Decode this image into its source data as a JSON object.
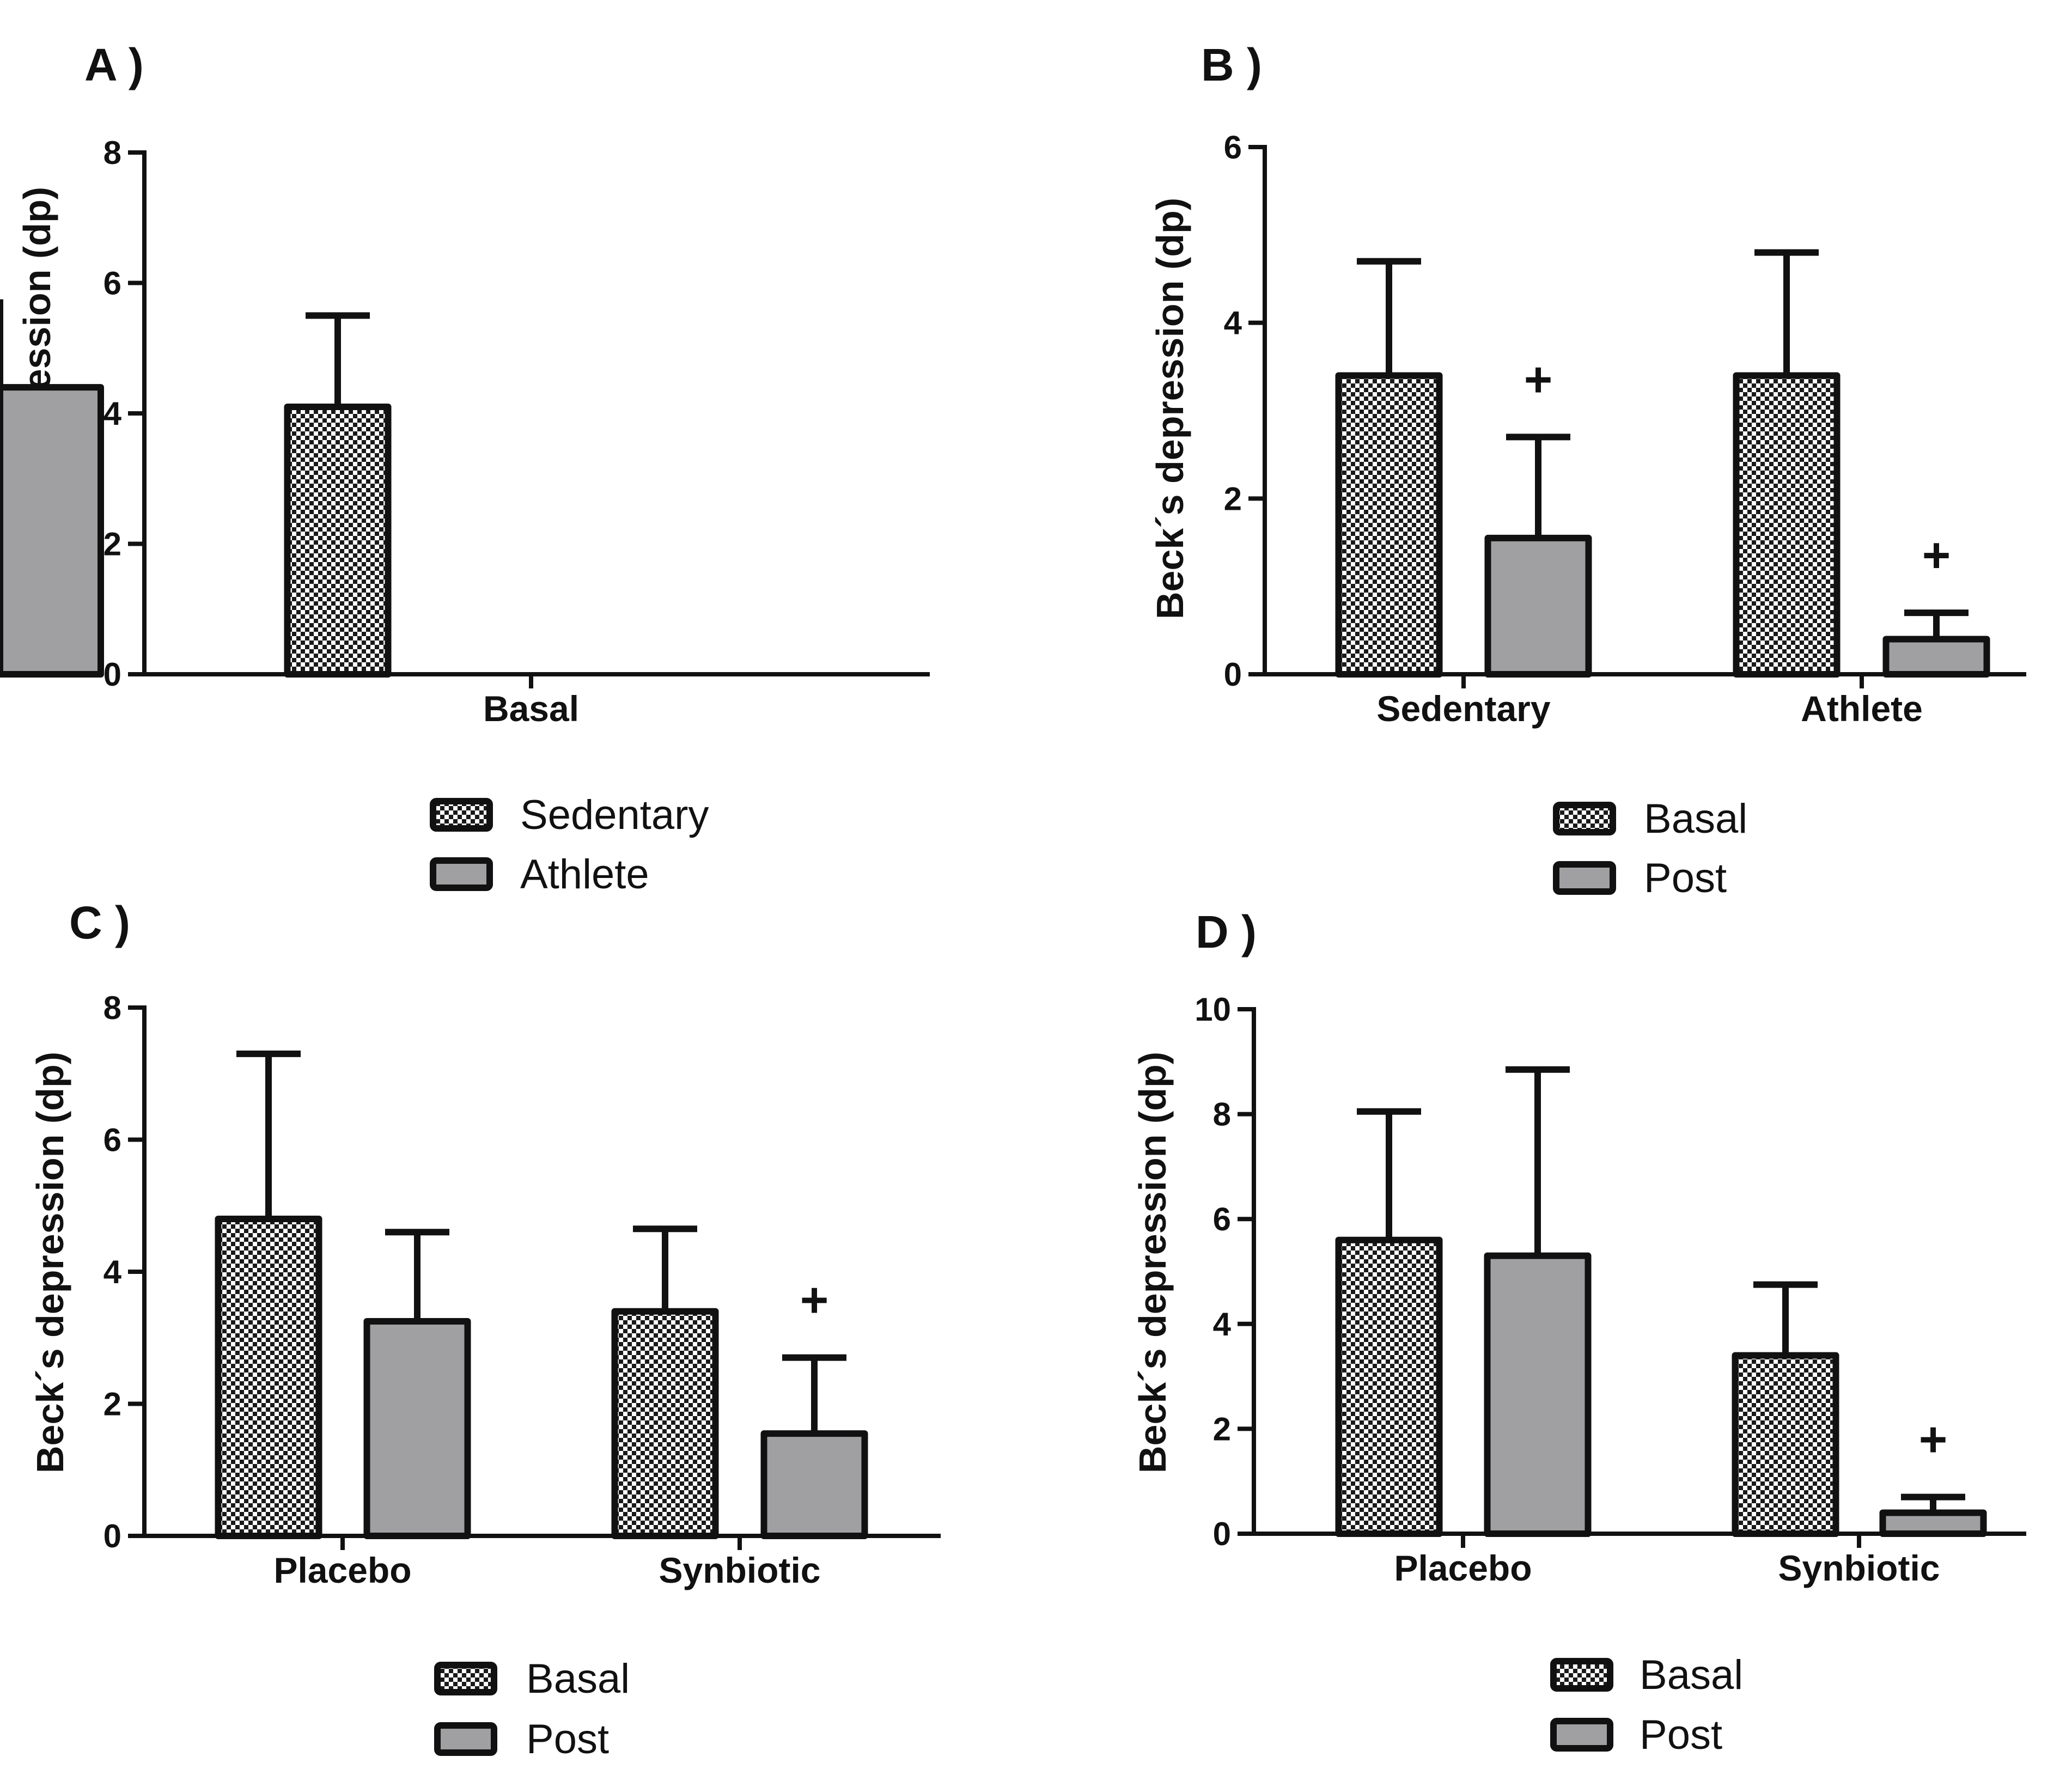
{
  "colors": {
    "frame": "#111111",
    "checker_light": "#ffffff",
    "checker_dark": "#1a1a1a",
    "solid_gray": "#a0a0a2"
  },
  "chart_data": [
    {
      "type": "bar",
      "panel_label": "A )",
      "ylabel": "Beck´s depression (dp)",
      "ylim": [
        0,
        8
      ],
      "yticks": [
        "0",
        "2",
        "4",
        "6",
        "8"
      ],
      "categories": [
        "Basal"
      ],
      "series": [
        {
          "name": "Sedentary",
          "fill": "checker",
          "values": [
            4.1
          ],
          "errors": [
            1.4
          ],
          "sig": [
            ""
          ]
        },
        {
          "name": "Athlete",
          "fill": "solid",
          "values": [
            4.4
          ],
          "errors": [
            1.35
          ],
          "sig": [
            ""
          ]
        }
      ],
      "legend": [
        "Sedentary",
        "Athlete"
      ],
      "legend_position": "bottom-center"
    },
    {
      "type": "bar",
      "panel_label": "B )",
      "ylabel": "Beck´s depression (dp)",
      "ylim": [
        0,
        6
      ],
      "yticks": [
        "0",
        "2",
        "4",
        "6"
      ],
      "categories": [
        "Sedentary",
        "Athlete"
      ],
      "series": [
        {
          "name": "Basal",
          "fill": "checker",
          "values": [
            3.4,
            3.4
          ],
          "errors": [
            1.3,
            1.4
          ],
          "sig": [
            "",
            ""
          ]
        },
        {
          "name": "Post",
          "fill": "solid",
          "values": [
            1.55,
            0.4
          ],
          "errors": [
            1.15,
            0.3
          ],
          "sig": [
            "+",
            "+"
          ]
        }
      ],
      "legend": [
        "Basal",
        "Post"
      ],
      "legend_position": "bottom-center"
    },
    {
      "type": "bar",
      "panel_label": "C )",
      "ylabel": "Beck´s depression (dp)",
      "ylim": [
        0,
        8
      ],
      "yticks": [
        "0",
        "2",
        "4",
        "6",
        "8"
      ],
      "categories": [
        "Placebo",
        "Synbiotic"
      ],
      "series": [
        {
          "name": "Basal",
          "fill": "checker",
          "values": [
            4.8,
            3.4
          ],
          "errors": [
            2.5,
            1.25
          ],
          "sig": [
            "",
            ""
          ]
        },
        {
          "name": "Post",
          "fill": "solid",
          "values": [
            3.25,
            1.55
          ],
          "errors": [
            1.35,
            1.15
          ],
          "sig": [
            "",
            "+"
          ]
        }
      ],
      "legend": [
        "Basal",
        "Post"
      ],
      "legend_position": "bottom-center"
    },
    {
      "type": "bar",
      "panel_label": "D )",
      "ylabel": "Beck´s depression  (dp)",
      "ylim": [
        0,
        10
      ],
      "yticks": [
        "0",
        "2",
        "4",
        "6",
        "8",
        "10"
      ],
      "categories": [
        "Placebo",
        "Synbiotic"
      ],
      "series": [
        {
          "name": "Basal",
          "fill": "checker",
          "values": [
            5.6,
            3.4
          ],
          "errors": [
            2.45,
            1.35
          ],
          "sig": [
            "",
            ""
          ]
        },
        {
          "name": "Post",
          "fill": "solid",
          "values": [
            5.3,
            0.4
          ],
          "errors": [
            3.55,
            0.3
          ],
          "sig": [
            "",
            "+"
          ]
        }
      ],
      "legend": [
        "Basal",
        "Post"
      ],
      "legend_position": "bottom-center"
    }
  ]
}
